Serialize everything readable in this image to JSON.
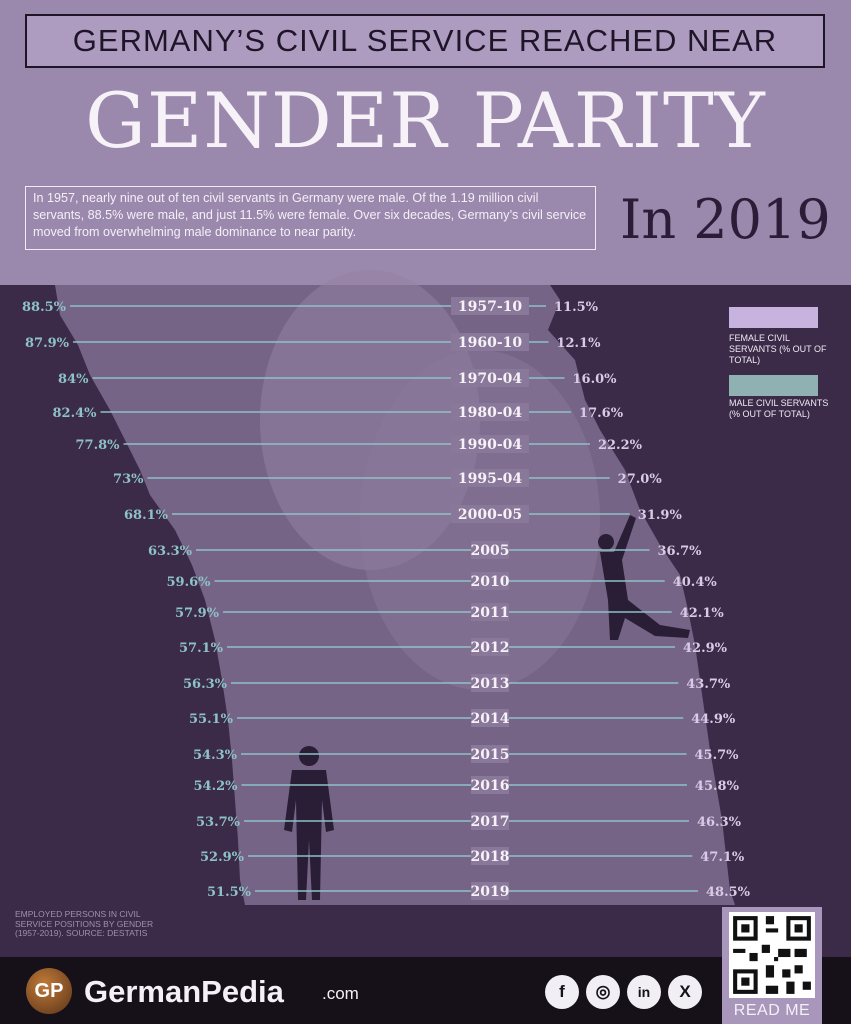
{
  "header": {
    "subtitle": "GERMANY’S CIVIL SERVICE REACHED NEAR",
    "title": "GENDER PARITY",
    "year": "In 2019",
    "intro": "In 1957, nearly nine out of ten civil servants in Germany were male. Of the 1.19 million civil servants, 88.5% were male, and just 11.5% were female. Over six decades, Germany’s civil service moved from overwhelming male dominance to near parity."
  },
  "legend": {
    "female": "FEMALE CIVIL SERVANTS (% OUT OF TOTAL)",
    "male": "MALE CIVIL SERVANTS (% OUT OF TOTAL)"
  },
  "colors": {
    "female": "#c8b3df",
    "male": "#8fb1b1",
    "line": "#8dc2c6",
    "background": "#3b2b48"
  },
  "chart_data": {
    "type": "bar",
    "categories": [
      "1957-10",
      "1960-10",
      "1970-04",
      "1980-04",
      "1990-04",
      "1995-04",
      "2000-05",
      "2005",
      "2010",
      "2011",
      "2012",
      "2013",
      "2014",
      "2015",
      "2016",
      "2017",
      "2018",
      "2019"
    ],
    "male_labels": [
      "88.5%",
      "87.9%",
      "84%",
      "82.4%",
      "77.8%",
      "73%",
      "68.1%",
      "63.3%",
      "59.6%",
      "57.9%",
      "57.1%",
      "56.3%",
      "55.1%",
      "54.3%",
      "54.2%",
      "53.7%",
      "52.9%",
      "51.5%"
    ],
    "female_labels": [
      "11.5%",
      "12.1%",
      "16.0%",
      "17.6%",
      "22.2%",
      "27.0%",
      "31.9%",
      "36.7%",
      "40.4%",
      "42.1%",
      "42.9%",
      "43.7%",
      "44.9%",
      "45.7%",
      "45.8%",
      "46.3%",
      "47.1%",
      "48.5%"
    ],
    "series": [
      {
        "name": "MALE CIVIL SERVANTS (% OUT OF TOTAL)",
        "values": [
          88.5,
          87.9,
          84,
          82.4,
          77.8,
          73,
          68.1,
          63.3,
          59.6,
          57.9,
          57.1,
          56.3,
          55.1,
          54.3,
          54.2,
          53.7,
          52.9,
          51.5
        ]
      },
      {
        "name": "FEMALE CIVIL SERVANTS (% OUT OF TOTAL)",
        "values": [
          11.5,
          12.1,
          16.0,
          17.6,
          22.2,
          27.0,
          31.9,
          36.7,
          40.4,
          42.1,
          42.9,
          43.7,
          44.9,
          45.7,
          45.8,
          46.3,
          47.1,
          48.5
        ]
      }
    ],
    "ylim": [
      0,
      100
    ],
    "legend_position": "right"
  },
  "source": "EMPLOYED PERSONS IN CIVIL SERVICE POSITIONS BY GENDER (1957-2019). SOURCE: DESTATIS",
  "footer": {
    "logo_initials": "GP",
    "brand": "GermanPedia",
    "brand_suffix": ".com",
    "social": [
      "f",
      "◎",
      "in",
      "X"
    ],
    "qr_label": "READ ME"
  }
}
